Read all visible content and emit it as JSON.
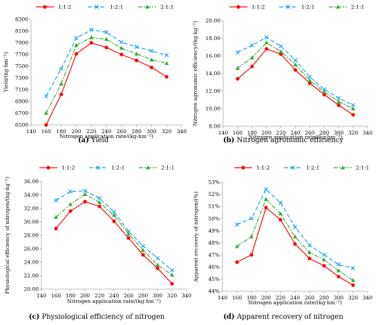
{
  "series_styles": [
    {
      "color": "#ff0000",
      "dash": "",
      "marker": "circle"
    },
    {
      "color": "#1aa3e8",
      "dash": "6,3",
      "marker": "x"
    },
    {
      "color": "#33aa33",
      "dash": "6,2,2,2",
      "marker": "triangle"
    }
  ],
  "chart_data": [
    {
      "type": "line",
      "letter": "(a)",
      "caption": "Yield",
      "xlabel": "Nitrogen application rate/(kg·hm⁻²)",
      "ylabel": "Yield/(kg·hm⁻²)",
      "xlim": [
        140,
        340
      ],
      "ylim": [
        6500,
        8300
      ],
      "xticks": [
        140,
        160,
        180,
        200,
        220,
        240,
        260,
        280,
        300,
        320,
        340
      ],
      "yticks": [
        6500,
        6700,
        6900,
        7100,
        7300,
        7500,
        7700,
        7900,
        8100,
        8300
      ],
      "yticklabels": [
        "6500",
        "6700",
        "6900",
        "7100",
        "7300",
        "7500",
        "7700",
        "7900",
        "8100",
        "8300"
      ],
      "x": [
        160,
        180,
        200,
        220,
        240,
        260,
        280,
        300,
        320
      ],
      "series": [
        {
          "name": "1:1:2",
          "values": [
            6500,
            7020,
            7710,
            7900,
            7820,
            7700,
            7600,
            7480,
            7320
          ]
        },
        {
          "name": "1:2:1",
          "values": [
            6990,
            7460,
            7980,
            8120,
            8080,
            7910,
            7830,
            7760,
            7690
          ]
        },
        {
          "name": "2:1:1",
          "values": [
            6700,
            7200,
            7860,
            7990,
            7960,
            7810,
            7710,
            7610,
            7550
          ]
        }
      ],
      "legend": "top"
    },
    {
      "type": "line",
      "letter": "(b)",
      "caption": "Nitrogen agronomic efficiency",
      "xlabel": "Nitrogen application rate/(kg·hm⁻²)",
      "ylabel": "Nitrogen agronomic efficiency/(kg·kg⁻¹)",
      "xlim": [
        140,
        340
      ],
      "ylim": [
        8,
        20
      ],
      "xticks": [
        140,
        160,
        180,
        200,
        220,
        240,
        260,
        280,
        300,
        320,
        340
      ],
      "yticks": [
        8,
        10,
        12,
        14,
        16,
        18,
        20
      ],
      "yticklabels": [
        "8.00",
        "10.00",
        "12.00",
        "14.00",
        "16.00",
        "18.00",
        "20.00"
      ],
      "x": [
        160,
        180,
        200,
        220,
        240,
        260,
        280,
        300,
        320
      ],
      "series": [
        {
          "name": "1:1:2",
          "values": [
            13.4,
            14.8,
            16.8,
            16.2,
            14.4,
            12.9,
            11.6,
            10.4,
            9.3
          ]
        },
        {
          "name": "1:2:1",
          "values": [
            16.4,
            17.2,
            18.1,
            17.1,
            15.5,
            13.6,
            12.2,
            11.2,
            10.4
          ]
        },
        {
          "name": "2:1:1",
          "values": [
            14.6,
            15.8,
            17.5,
            16.5,
            15.0,
            13.2,
            11.9,
            10.8,
            10.0
          ]
        }
      ],
      "legend": "top"
    },
    {
      "type": "line",
      "letter": "(c)",
      "caption": "Physiological efficiency of nitrogen",
      "xlabel": "Nitrogen application rate/(kg·hm⁻²)",
      "ylabel": "Physiological efficiency of nitrogen/(kg·kg⁻¹)",
      "xlim": [
        140,
        340
      ],
      "ylim": [
        20,
        36
      ],
      "xticks": [
        140,
        160,
        180,
        200,
        220,
        240,
        260,
        280,
        300,
        320,
        340
      ],
      "yticks": [
        20,
        22,
        24,
        26,
        28,
        30,
        32,
        34,
        36
      ],
      "yticklabels": [
        "20.00",
        "22.00",
        "24.00",
        "26.00",
        "28.00",
        "30.00",
        "32.00",
        "34.00",
        "36.00"
      ],
      "x": [
        160,
        180,
        200,
        220,
        240,
        260,
        280,
        300,
        320
      ],
      "series": [
        {
          "name": "1:1:2",
          "values": [
            29.0,
            31.6,
            33.0,
            32.3,
            30.1,
            27.6,
            25.1,
            23.1,
            20.8
          ]
        },
        {
          "name": "1:2:1",
          "values": [
            33.2,
            34.5,
            34.6,
            33.5,
            31.5,
            28.6,
            26.4,
            24.6,
            22.8
          ]
        },
        {
          "name": "2:1:1",
          "values": [
            30.7,
            32.6,
            34.1,
            32.9,
            31.0,
            28.2,
            25.8,
            23.6,
            22.1
          ]
        }
      ],
      "legend": "top"
    },
    {
      "type": "line",
      "letter": "(d)",
      "caption": "Apparent recovery of nitrogen",
      "xlabel": "Nitrogen application rate/(kg·hm⁻²)",
      "ylabel": "Apparent recovery of nitrogen/(%)",
      "xlim": [
        140,
        340
      ],
      "ylim": [
        44,
        53
      ],
      "xticks": [
        140,
        160,
        180,
        200,
        220,
        240,
        260,
        280,
        300,
        320,
        340
      ],
      "yticks": [
        44,
        45,
        46,
        47,
        48,
        49,
        50,
        51,
        52,
        53
      ],
      "yticklabels": [
        "44%",
        "45%",
        "46%",
        "47%",
        "48%",
        "49%",
        "50%",
        "51%",
        "52%",
        "53%"
      ],
      "x": [
        160,
        180,
        200,
        220,
        240,
        260,
        280,
        300,
        320
      ],
      "series": [
        {
          "name": "1:1:2",
          "values": [
            46.4,
            47.0,
            50.9,
            49.9,
            47.9,
            46.7,
            46.1,
            45.2,
            44.5
          ]
        },
        {
          "name": "1:2:1",
          "values": [
            49.5,
            50.0,
            52.4,
            51.3,
            49.3,
            47.8,
            47.0,
            46.2,
            45.9
          ]
        },
        {
          "name": "2:1:1",
          "values": [
            47.7,
            48.5,
            51.6,
            50.4,
            48.5,
            47.2,
            46.6,
            45.7,
            44.9
          ]
        }
      ],
      "legend": "top"
    }
  ]
}
